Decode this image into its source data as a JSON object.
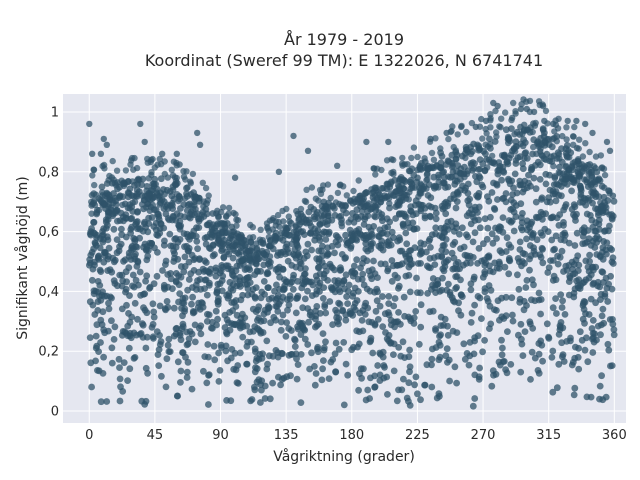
{
  "chart_data": {
    "type": "scatter",
    "title_line1": "År 1979 - 2019",
    "title_line2": "Koordinat (Sweref 99 TM): E 1322026, N 6741741",
    "xlabel": "Vågriktning (grader)",
    "ylabel": "Signifikant våghöjd (m)",
    "xlim": [
      -18,
      368
    ],
    "ylim": [
      -0.04,
      1.06
    ],
    "x_ticks": [
      0,
      45,
      90,
      135,
      180,
      225,
      270,
      315,
      360
    ],
    "x_tick_labels": [
      "0",
      "45",
      "90",
      "135",
      "180",
      "225",
      "270",
      "315",
      "360"
    ],
    "y_ticks": [
      0,
      0.2,
      0.4,
      0.6,
      0.8,
      1
    ],
    "y_tick_labels": [
      "0",
      "0,2",
      "0,4",
      "0,6",
      "0,8",
      "1"
    ],
    "grid": true,
    "colors": {
      "marker": "#2f5369",
      "plot_background": "#e5e7f0",
      "grid": "#ffffff"
    },
    "upper_envelope": {
      "direction_deg": [
        0,
        15,
        30,
        45,
        60,
        75,
        90,
        105,
        120,
        135,
        150,
        165,
        180,
        195,
        210,
        225,
        240,
        255,
        270,
        285,
        300,
        315,
        330,
        345,
        360
      ],
      "max_height_m": [
        0.76,
        0.78,
        0.8,
        0.8,
        0.78,
        0.74,
        0.66,
        0.6,
        0.58,
        0.64,
        0.7,
        0.72,
        0.72,
        0.76,
        0.8,
        0.84,
        0.88,
        0.9,
        0.92,
        0.96,
        0.98,
        0.96,
        0.9,
        0.84,
        0.74
      ]
    },
    "outliers": [
      {
        "x": 0,
        "y": 0.96
      },
      {
        "x": 2,
        "y": 0.86
      },
      {
        "x": 8,
        "y": 0.86
      },
      {
        "x": 10,
        "y": 0.91
      },
      {
        "x": 12,
        "y": 0.89
      },
      {
        "x": 35,
        "y": 0.96
      },
      {
        "x": 38,
        "y": 0.9
      },
      {
        "x": 50,
        "y": 0.86
      },
      {
        "x": 60,
        "y": 0.86
      },
      {
        "x": 74,
        "y": 0.93
      },
      {
        "x": 76,
        "y": 0.89
      },
      {
        "x": 100,
        "y": 0.78
      },
      {
        "x": 130,
        "y": 0.8
      },
      {
        "x": 140,
        "y": 0.92
      },
      {
        "x": 150,
        "y": 0.87
      },
      {
        "x": 170,
        "y": 0.82
      },
      {
        "x": 190,
        "y": 0.9
      },
      {
        "x": 205,
        "y": 0.9
      },
      {
        "x": 234,
        "y": 0.91
      },
      {
        "x": 245,
        "y": 0.93
      },
      {
        "x": 255,
        "y": 0.95
      },
      {
        "x": 265,
        "y": 0.95
      },
      {
        "x": 272,
        "y": 0.97
      },
      {
        "x": 277,
        "y": 1.03
      },
      {
        "x": 280,
        "y": 1.02
      },
      {
        "x": 290,
        "y": 0.98
      },
      {
        "x": 296,
        "y": 1.01
      },
      {
        "x": 300,
        "y": 1.01
      },
      {
        "x": 305,
        "y": 1.0
      },
      {
        "x": 312,
        "y": 0.97
      },
      {
        "x": 318,
        "y": 0.96
      },
      {
        "x": 328,
        "y": 0.97
      },
      {
        "x": 334,
        "y": 0.97
      },
      {
        "x": 340,
        "y": 0.96
      },
      {
        "x": 345,
        "y": 0.93
      },
      {
        "x": 355,
        "y": 0.9
      },
      {
        "x": 357,
        "y": 0.87
      },
      {
        "x": 359,
        "y": 0.72
      }
    ]
  }
}
